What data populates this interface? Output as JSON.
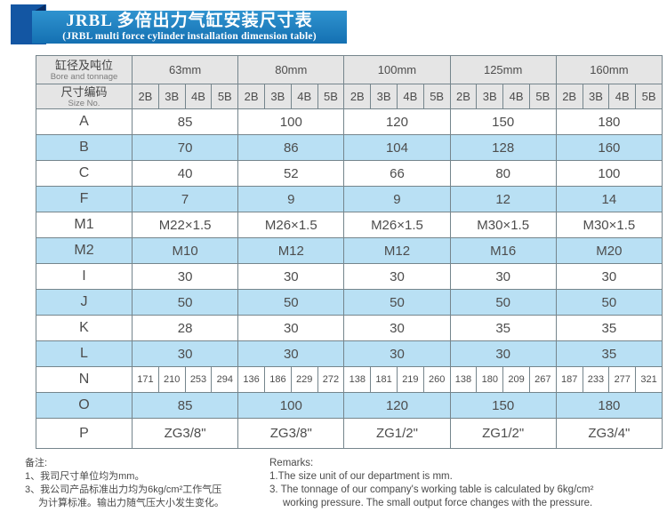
{
  "title": {
    "zh": "JRBL 多倍出力气缸安装尺寸表",
    "en": "(JRBL multi force cylinder installation dimension table)"
  },
  "colors": {
    "banner": "#1470b2",
    "banner_light": "#2f93cf",
    "ribbon": "#1356a3",
    "ribbon_dark": "#0a2c63",
    "row_blue": "#b9e0f4",
    "header_gray": "#e5e5e5",
    "border": "#75858c"
  },
  "table": {
    "corner": {
      "zh": "缸径及吨位",
      "en": "Bore and tonnage"
    },
    "size_no": {
      "zh": "尺寸编码",
      "en": "Size No."
    },
    "groups": [
      "63mm",
      "80mm",
      "100mm",
      "125mm",
      "160mm"
    ],
    "sub_cols": [
      "2B",
      "3B",
      "4B",
      "5B"
    ],
    "rows": [
      {
        "label": "A",
        "type": "merged",
        "values": [
          "85",
          "100",
          "120",
          "150",
          "180"
        ]
      },
      {
        "label": "B",
        "type": "merged",
        "values": [
          "70",
          "86",
          "104",
          "128",
          "160"
        ]
      },
      {
        "label": "C",
        "type": "merged",
        "values": [
          "40",
          "52",
          "66",
          "80",
          "100"
        ]
      },
      {
        "label": "F",
        "type": "merged",
        "values": [
          "7",
          "9",
          "9",
          "12",
          "14"
        ]
      },
      {
        "label": "M1",
        "type": "merged",
        "values": [
          "M22×1.5",
          "M26×1.5",
          "M26×1.5",
          "M30×1.5",
          "M30×1.5"
        ]
      },
      {
        "label": "M2",
        "type": "merged",
        "values": [
          "M10",
          "M12",
          "M12",
          "M16",
          "M20"
        ]
      },
      {
        "label": "I",
        "type": "merged",
        "values": [
          "30",
          "30",
          "30",
          "30",
          "30"
        ]
      },
      {
        "label": "J",
        "type": "merged",
        "values": [
          "50",
          "50",
          "50",
          "50",
          "50"
        ]
      },
      {
        "label": "K",
        "type": "merged",
        "values": [
          "28",
          "30",
          "30",
          "35",
          "35"
        ]
      },
      {
        "label": "L",
        "type": "merged",
        "values": [
          "30",
          "30",
          "30",
          "30",
          "35"
        ]
      },
      {
        "label": "N",
        "type": "percol",
        "values": [
          "171",
          "210",
          "253",
          "294",
          "136",
          "186",
          "229",
          "272",
          "138",
          "181",
          "219",
          "260",
          "138",
          "180",
          "209",
          "267",
          "187",
          "233",
          "277",
          "321"
        ]
      },
      {
        "label": "O",
        "type": "merged",
        "values": [
          "85",
          "100",
          "120",
          "150",
          "180"
        ]
      },
      {
        "label": "P",
        "type": "merged",
        "values": [
          "ZG3/8\"",
          "ZG3/8\"",
          "ZG1/2\"",
          "ZG1/2\"",
          "ZG3/4\""
        ]
      }
    ]
  },
  "notes": {
    "zh": {
      "heading": "备注:",
      "lines": [
        {
          "text": "1、我司尺寸单位均为mm。",
          "indent": false
        },
        {
          "text": "3、我公司产品标准出力均为6kg/cm²工作气压",
          "indent": false
        },
        {
          "text": "为计算标准。输出力随气压大小发生变化。",
          "indent": true
        }
      ]
    },
    "en": {
      "heading": "Remarks:",
      "lines": [
        {
          "text": "1.The size unit of our department is mm.",
          "indent": false
        },
        {
          "text": "3. The tonnage of our company's working table is calculated by 6kg/cm²",
          "indent": false
        },
        {
          "text": "working pressure. The small output force changes with the pressure.",
          "indent": true
        }
      ]
    }
  }
}
